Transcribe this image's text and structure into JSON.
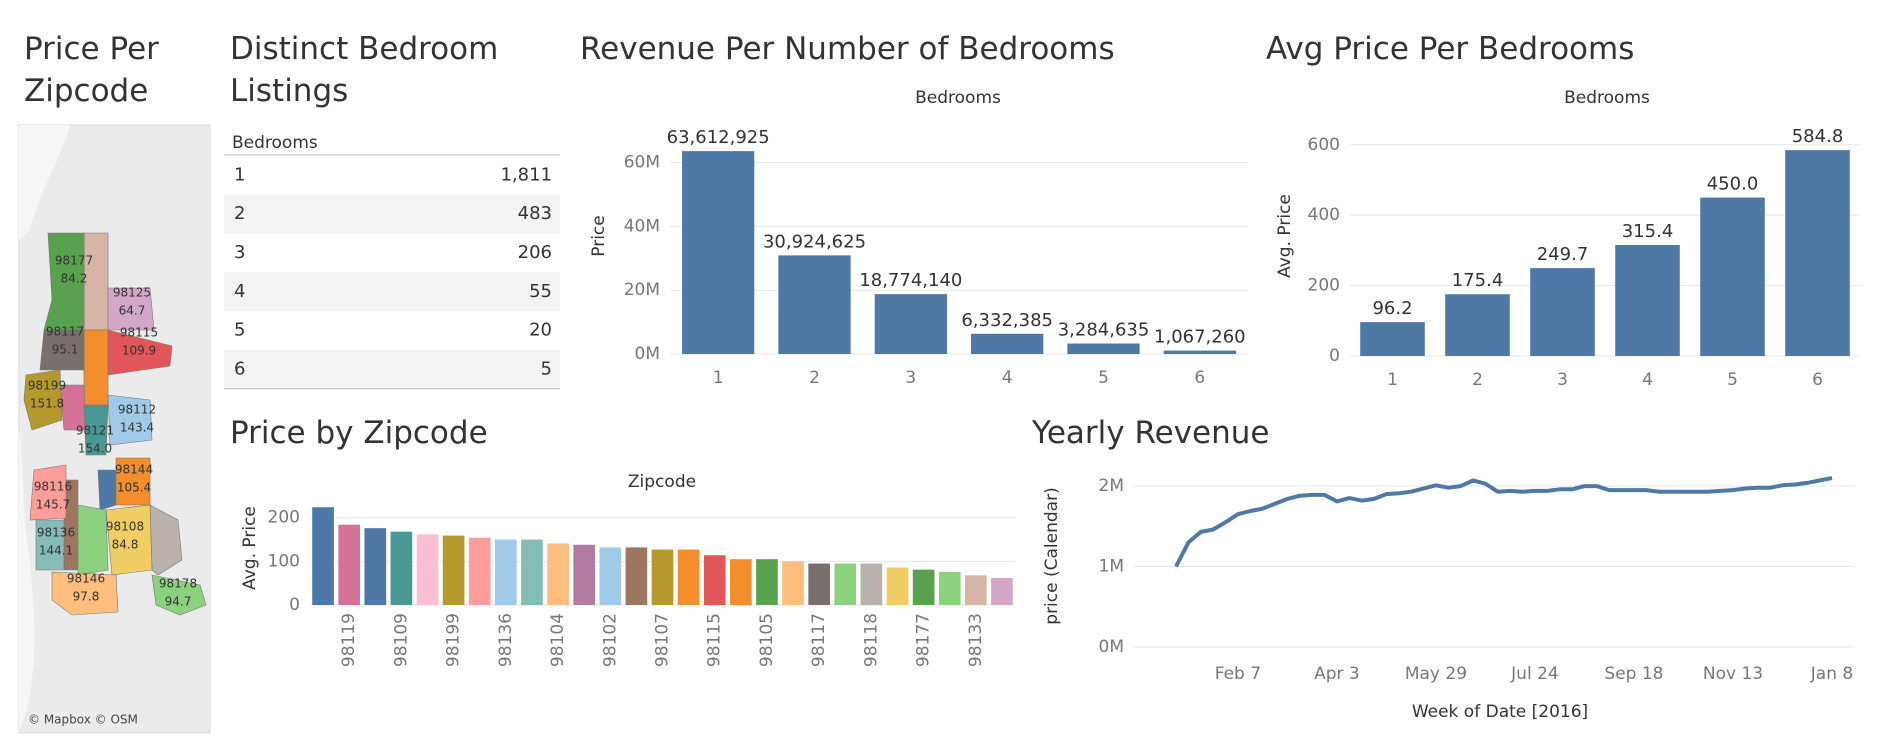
{
  "map": {
    "title": "Price Per Zipcode",
    "attribution": "© Mapbox © OSM",
    "zipcodes": [
      "98177",
      "98125",
      "98117",
      "98115",
      "98199",
      "98112",
      "98121",
      "98144",
      "98116",
      "98136",
      "98108",
      "98146",
      "98178"
    ],
    "values": [
      84.2,
      64.7,
      95.1,
      109.9,
      151.8,
      143.4,
      154.0,
      105.4,
      145.7,
      144.1,
      84.8,
      97.8,
      94.7
    ],
    "value_labels": [
      "84.2",
      "64.7",
      "95.1",
      "109.9",
      "151.8",
      "143.4",
      "154.0",
      "105.4",
      "145.7",
      "144.1",
      "84.8",
      "97.8",
      "94.7"
    ],
    "colors": [
      "#59a14f",
      "#d4a6c8",
      "#79706e",
      "#e15759",
      "#b6992d",
      "#a0cbe8",
      "#499894",
      "#f28e2b",
      "#ff9d9a",
      "#86bcb6",
      "#f1ce63",
      "#ffbe7d",
      "#8cd17d"
    ]
  },
  "table": {
    "title": "Distinct Bedroom Listings",
    "header": "Bedrooms",
    "rows": [
      [
        "1",
        "1,811"
      ],
      [
        "2",
        "483"
      ],
      [
        "3",
        "206"
      ],
      [
        "4",
        "55"
      ],
      [
        "5",
        "20"
      ],
      [
        "6",
        "5"
      ]
    ]
  },
  "chart_data": [
    {
      "type": "bar",
      "title": "Revenue Per Number of Bedrooms",
      "x_label": "Bedrooms",
      "y_label": "Price",
      "categories": [
        "1",
        "2",
        "3",
        "4",
        "5",
        "6"
      ],
      "values": [
        63612925,
        30924625,
        18774140,
        6332385,
        3284635,
        1067260
      ],
      "value_labels": [
        "63,612,925",
        "30,924,625",
        "18,774,140",
        "6,332,385",
        "3,284,635",
        "1,067,260"
      ],
      "color": "#4e79a7",
      "ylim": [
        0,
        74000000
      ],
      "yticks": [
        {
          "value": 0,
          "label": "0M"
        },
        {
          "value": 20000000,
          "label": "20M"
        },
        {
          "value": 40000000,
          "label": "40M"
        },
        {
          "value": 60000000,
          "label": "60M"
        }
      ],
      "grid": true
    },
    {
      "type": "bar",
      "title": "Avg Price Per Bedrooms",
      "x_label": "Bedrooms",
      "y_label": "Avg. Price",
      "categories": [
        "1",
        "2",
        "3",
        "4",
        "5",
        "6"
      ],
      "values": [
        96.2,
        175.4,
        249.7,
        315.4,
        450.0,
        584.8
      ],
      "value_labels": [
        "96.2",
        "175.4",
        "249.7",
        "315.4",
        "450.0",
        "584.8"
      ],
      "color": "#4e79a7",
      "ylim": [
        0,
        676
      ],
      "yticks": [
        0,
        200,
        400,
        600
      ],
      "grid": true
    },
    {
      "type": "bar",
      "title": "Price by Zipcode",
      "x_label": "Zipcode",
      "y_label": "Avg. Price",
      "categories": [
        null,
        "98119",
        null,
        "98109",
        null,
        "98199",
        null,
        "98136",
        null,
        "98104",
        null,
        "98102",
        null,
        "98107",
        null,
        "98115",
        null,
        "98105",
        null,
        "98117",
        null,
        "98118",
        null,
        "98177",
        null,
        "98133",
        null
      ],
      "values": [
        224,
        184,
        176,
        168,
        162,
        159,
        154,
        150,
        150,
        141,
        138,
        132,
        132,
        127,
        127,
        114,
        105,
        105,
        100,
        95,
        95,
        95,
        86,
        81,
        76,
        68,
        62
      ],
      "colors": [
        "#4e79a7",
        "#d37295",
        "#4e79a7",
        "#499894",
        "#fabfd2",
        "#b6992d",
        "#ff9d9a",
        "#a0cbe8",
        "#86bcb6",
        "#ffbe7d",
        "#b07aa1",
        "#a0cbe8",
        "#9d7660",
        "#b6992d",
        "#f28e2b",
        "#e15759",
        "#f28e2b",
        "#59a14f",
        "#ffbe7d",
        "#79706e",
        "#8cd17d",
        "#bab0ac",
        "#f1ce63",
        "#59a14f",
        "#8cd17d",
        "#d7b5a6",
        "#d4a6c8"
      ],
      "ylim": [
        0,
        236
      ],
      "yticks": [
        0,
        100,
        200
      ],
      "grid": true
    },
    {
      "type": "line",
      "title": "Yearly Revenue",
      "x_label": "Week of Date [2016]",
      "y_label": "price (Calendar)",
      "categories": [
        null,
        null,
        null,
        null,
        null,
        "Feb 7",
        null,
        null,
        null,
        null,
        null,
        null,
        null,
        "Apr 3",
        null,
        null,
        null,
        null,
        null,
        null,
        null,
        "May 29",
        null,
        null,
        null,
        null,
        null,
        null,
        null,
        "Jul 24",
        null,
        null,
        null,
        null,
        null,
        null,
        null,
        "Sep 18",
        null,
        null,
        null,
        null,
        null,
        null,
        null,
        "Nov 13",
        null,
        null,
        null,
        null,
        null,
        null,
        null,
        "Jan 8"
      ],
      "values": [
        1000000,
        1300000,
        1430000,
        1460000,
        1550000,
        1650000,
        1690000,
        1720000,
        1780000,
        1840000,
        1880000,
        1890000,
        1890000,
        1810000,
        1850000,
        1820000,
        1840000,
        1900000,
        1910000,
        1930000,
        1970000,
        2010000,
        1980000,
        2000000,
        2070000,
        2030000,
        1930000,
        1940000,
        1930000,
        1940000,
        1940000,
        1960000,
        1960000,
        2000000,
        2000000,
        1950000,
        1950000,
        1950000,
        1950000,
        1930000,
        1930000,
        1930000,
        1930000,
        1930000,
        1940000,
        1950000,
        1970000,
        1980000,
        1980000,
        2010000,
        2020000,
        2040000,
        2070000,
        2100000
      ],
      "color": "#4e79a7",
      "ylim": [
        0,
        2150000
      ],
      "yticks": [
        {
          "value": 0,
          "label": "0M"
        },
        {
          "value": 1000000,
          "label": "1M"
        },
        {
          "value": 2000000,
          "label": "2M"
        }
      ],
      "grid": true
    }
  ]
}
